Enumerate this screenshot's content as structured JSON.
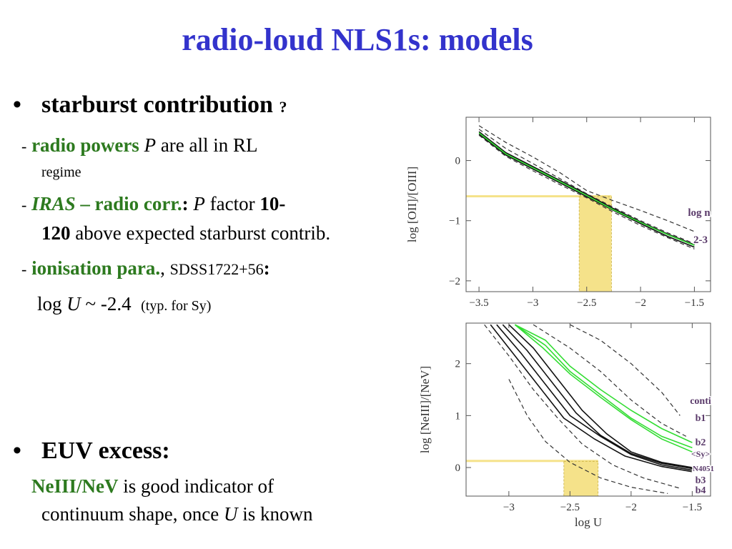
{
  "slide": {
    "title": "radio-loud NLS1s: models",
    "bullet1": {
      "main": "starburst contribution",
      "suffix": "?"
    },
    "sub1": {
      "dash": "-",
      "term": "radio powers",
      "var": "P",
      "rest": "are all in RL",
      "cont": "regime"
    },
    "sub2": {
      "dash": "-",
      "term_it": "IRAS",
      "term": "– radio corr",
      "dot": ".",
      "colon": ":",
      "var": "P",
      "rest": "factor",
      "num": "10-",
      "num2": "120",
      "cont": "above expected starburst contrib."
    },
    "sub3": {
      "dash": "-",
      "term": "ionisation para",
      "dot": ".",
      "comma": ",",
      "obj": "SDSS1722+56",
      "colon": ":"
    },
    "sub3b": {
      "pre": "log",
      "var": "U",
      "val": "~ -2.4",
      "note": "(typ. for Sy)"
    },
    "bullet2": {
      "main": "EUV excess:"
    },
    "sub4": {
      "term": "NeIII/NeV",
      "rest": "is good indicator of",
      "cont_pre": "continuum shape, once",
      "var": "U",
      "cont_post": "is known"
    }
  },
  "colors": {
    "title": "#3333cc",
    "green": "#2d7a1f",
    "highlight": "#f5e28a",
    "model_green": "#33dd33"
  },
  "chart_data": [
    {
      "type": "line",
      "ylabel": "log [OII]/[OIII]",
      "xlim": [
        -3.62,
        -1.35
      ],
      "ylim": [
        -2.18,
        0.72
      ],
      "xticks": [
        "-3.5",
        "-3",
        "-2.5",
        "-2",
        "-1.5"
      ],
      "xtick_values": [
        -3.5,
        -3,
        -2.5,
        -2,
        -1.5
      ],
      "yticks": [
        "0",
        "-1",
        "-2"
      ],
      "ytick_values": [
        0,
        -1,
        -2
      ],
      "annotations": [
        "log n",
        "2-3"
      ],
      "observed": {
        "y": -0.6,
        "x_range": [
          -2.57,
          -2.27
        ]
      },
      "series": [
        {
          "style": "solid-black",
          "points": [
            [
              -3.5,
              0.48
            ],
            [
              -3.25,
              0.13
            ],
            [
              -3,
              -0.1
            ],
            [
              -2.75,
              -0.33
            ],
            [
              -2.5,
              -0.56
            ],
            [
              -2.25,
              -0.8
            ],
            [
              -2,
              -1.02
            ],
            [
              -1.75,
              -1.22
            ],
            [
              -1.5,
              -1.4
            ]
          ]
        },
        {
          "style": "solid-black",
          "points": [
            [
              -3.5,
              0.44
            ],
            [
              -3.25,
              0.09
            ],
            [
              -3,
              -0.14
            ],
            [
              -2.75,
              -0.37
            ],
            [
              -2.5,
              -0.6
            ],
            [
              -2.25,
              -0.83
            ],
            [
              -2,
              -1.05
            ],
            [
              -1.75,
              -1.26
            ],
            [
              -1.5,
              -1.44
            ]
          ]
        },
        {
          "style": "solid-green",
          "points": [
            [
              -3.5,
              0.46
            ],
            [
              -3.25,
              0.11
            ],
            [
              -3,
              -0.12
            ],
            [
              -2.75,
              -0.35
            ],
            [
              -2.5,
              -0.58
            ],
            [
              -2.25,
              -0.82
            ],
            [
              -2,
              -1.03
            ],
            [
              -1.75,
              -1.23
            ],
            [
              -1.5,
              -1.41
            ]
          ]
        },
        {
          "style": "dashed",
          "points": [
            [
              -3.5,
              0.58
            ],
            [
              -3.25,
              0.3
            ],
            [
              -3,
              0.06
            ],
            [
              -2.75,
              -0.2
            ],
            [
              -2.5,
              -0.5
            ],
            [
              -2.25,
              -0.67
            ],
            [
              -2,
              -0.83
            ],
            [
              -1.75,
              -1.0
            ],
            [
              -1.5,
              -1.18
            ]
          ]
        },
        {
          "style": "dashed",
          "points": [
            [
              -3.5,
              0.52
            ],
            [
              -3.25,
              0.2
            ],
            [
              -3,
              -0.05
            ],
            [
              -2.75,
              -0.3
            ],
            [
              -2.5,
              -0.55
            ],
            [
              -2.25,
              -0.78
            ],
            [
              -2,
              -1.0
            ],
            [
              -1.75,
              -1.2
            ],
            [
              -1.5,
              -1.38
            ]
          ]
        },
        {
          "style": "dashed",
          "points": [
            [
              -3.5,
              0.42
            ],
            [
              -3.25,
              0.07
            ],
            [
              -3,
              -0.17
            ],
            [
              -2.75,
              -0.4
            ],
            [
              -2.5,
              -0.62
            ],
            [
              -2.25,
              -0.86
            ],
            [
              -2,
              -1.08
            ],
            [
              -1.75,
              -1.28
            ],
            [
              -1.5,
              -1.47
            ]
          ]
        }
      ]
    },
    {
      "type": "line",
      "xlabel": "log U",
      "ylabel": "log [NeIII]/[NeV]",
      "xlim": [
        -3.35,
        -1.35
      ],
      "ylim": [
        -0.55,
        2.78
      ],
      "xticks": [
        "-3",
        "-2.5",
        "-2",
        "-1.5"
      ],
      "xtick_values": [
        -3,
        -2.5,
        -2,
        -1.5
      ],
      "yticks": [
        "2",
        "1",
        "0"
      ],
      "ytick_values": [
        2,
        1,
        0
      ],
      "annotations": [
        "conti",
        "b1",
        "b2",
        "<Sy>",
        "N4051",
        "b3",
        "b4"
      ],
      "observed": {
        "y": 0.12,
        "x_range": [
          -2.55,
          -2.27
        ]
      },
      "series": [
        {
          "style": "solid-black",
          "points": [
            [
              -3.1,
              2.75
            ],
            [
              -2.9,
              2.2
            ],
            [
              -2.7,
              1.6
            ],
            [
              -2.5,
              1.0
            ],
            [
              -2.25,
              0.6
            ],
            [
              -2.0,
              0.25
            ],
            [
              -1.75,
              0.05
            ],
            [
              -1.5,
              -0.05
            ]
          ]
        },
        {
          "style": "solid-black",
          "points": [
            [
              -3.05,
              2.75
            ],
            [
              -2.85,
              2.25
            ],
            [
              -2.65,
              1.65
            ],
            [
              -2.45,
              1.05
            ],
            [
              -2.25,
              0.62
            ],
            [
              -2.0,
              0.27
            ],
            [
              -1.75,
              0.08
            ],
            [
              -1.5,
              -0.02
            ]
          ]
        },
        {
          "style": "solid-black",
          "points": [
            [
              -3.0,
              2.75
            ],
            [
              -2.8,
              2.3
            ],
            [
              -2.6,
              1.7
            ],
            [
              -2.4,
              1.1
            ],
            [
              -2.2,
              0.65
            ],
            [
              -2.0,
              0.3
            ],
            [
              -1.75,
              0.1
            ],
            [
              -1.5,
              0.0
            ]
          ]
        },
        {
          "style": "solid-black",
          "points": [
            [
              -3.15,
              2.75
            ],
            [
              -2.95,
              2.15
            ],
            [
              -2.75,
              1.55
            ],
            [
              -2.55,
              0.95
            ],
            [
              -2.3,
              0.55
            ],
            [
              -2.05,
              0.22
            ],
            [
              -1.75,
              0.02
            ],
            [
              -1.5,
              -0.08
            ]
          ]
        },
        {
          "style": "solid-green",
          "points": [
            [
              -2.95,
              2.75
            ],
            [
              -2.7,
              2.45
            ],
            [
              -2.5,
              1.95
            ],
            [
              -2.25,
              1.5
            ],
            [
              -2.0,
              1.1
            ],
            [
              -1.75,
              0.75
            ],
            [
              -1.5,
              0.48
            ]
          ]
        },
        {
          "style": "solid-green",
          "points": [
            [
              -2.95,
              2.75
            ],
            [
              -2.7,
              2.35
            ],
            [
              -2.5,
              1.85
            ],
            [
              -2.25,
              1.4
            ],
            [
              -2.0,
              0.95
            ],
            [
              -1.75,
              0.6
            ],
            [
              -1.5,
              0.38
            ]
          ]
        },
        {
          "style": "solid-green",
          "points": [
            [
              -2.95,
              2.75
            ],
            [
              -2.72,
              2.3
            ],
            [
              -2.5,
              1.8
            ],
            [
              -2.25,
              1.35
            ],
            [
              -2.0,
              0.92
            ],
            [
              -1.75,
              0.55
            ],
            [
              -1.5,
              0.3
            ]
          ]
        },
        {
          "style": "dashed",
          "points": [
            [
              -2.5,
              2.75
            ],
            [
              -2.25,
              2.45
            ],
            [
              -2.0,
              2.0
            ],
            [
              -1.75,
              1.45
            ],
            [
              -1.6,
              1.0
            ]
          ]
        },
        {
          "style": "dashed",
          "points": [
            [
              -2.8,
              2.75
            ],
            [
              -2.5,
              2.3
            ],
            [
              -2.25,
              1.85
            ],
            [
              -2.0,
              1.3
            ],
            [
              -1.75,
              0.85
            ],
            [
              -1.55,
              0.6
            ]
          ]
        },
        {
          "style": "dashed",
          "points": [
            [
              -3.2,
              2.75
            ],
            [
              -3.0,
              2.15
            ],
            [
              -2.8,
              1.5
            ],
            [
              -2.6,
              0.95
            ],
            [
              -2.4,
              0.45
            ],
            [
              -2.15,
              0.05
            ],
            [
              -1.9,
              -0.2
            ],
            [
              -1.6,
              -0.4
            ]
          ]
        },
        {
          "style": "dashed",
          "points": [
            [
              -3.0,
              1.7
            ],
            [
              -2.85,
              1.0
            ],
            [
              -2.7,
              0.5
            ],
            [
              -2.5,
              0.1
            ],
            [
              -2.25,
              -0.2
            ],
            [
              -2.0,
              -0.38
            ],
            [
              -1.7,
              -0.5
            ]
          ]
        }
      ]
    }
  ]
}
